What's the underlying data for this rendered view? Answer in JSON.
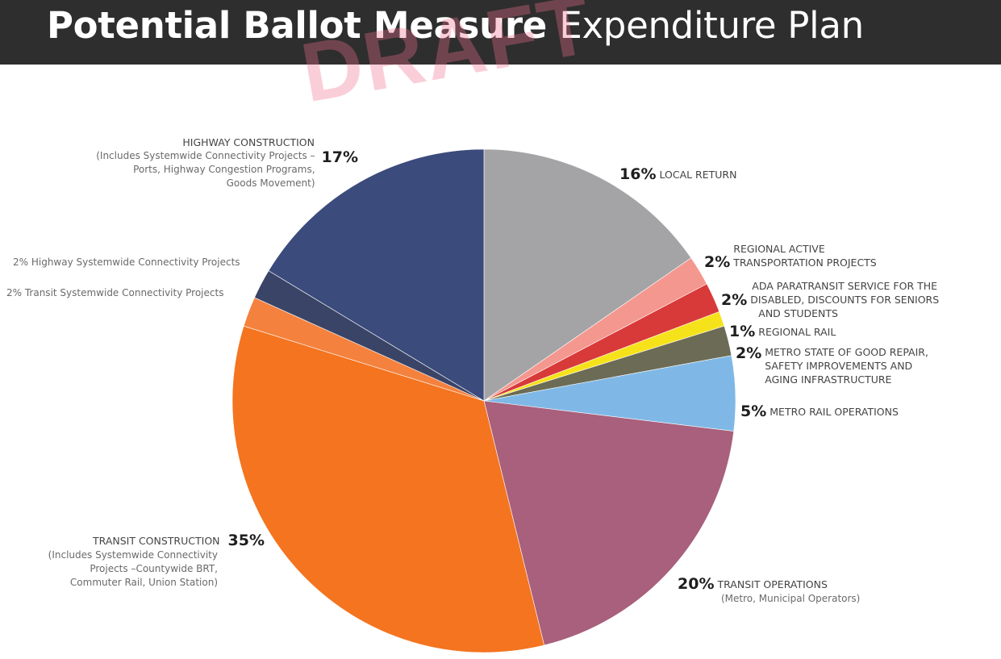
{
  "header": {
    "title_bold": "Potential Ballot Measure",
    "title_light": "Expenditure Plan"
  },
  "watermark": "DRAFT",
  "chart_data": {
    "type": "pie",
    "title": "Potential Ballot Measure Expenditure Plan",
    "slices": [
      {
        "pct_label": "16%",
        "value": 16,
        "label": "LOCAL RETURN",
        "color": "#a4a4a6"
      },
      {
        "pct_label": "2%",
        "value": 2,
        "label_lines": [
          "REGIONAL ACTIVE",
          "TRANSPORTATION PROJECTS"
        ],
        "color": "#f4978e"
      },
      {
        "pct_label": "2%",
        "value": 2,
        "label_lines": [
          "ADA PARATRANSIT SERVICE FOR THE",
          "DISABLED, DISCOUNTS FOR SENIORS",
          "AND STUDENTS"
        ],
        "color": "#d83a3a"
      },
      {
        "pct_label": "1%",
        "value": 1,
        "label": "REGIONAL RAIL",
        "color": "#f6e21a"
      },
      {
        "pct_label": "2%",
        "value": 2,
        "label_lines": [
          "METRO STATE OF GOOD REPAIR,",
          "SAFETY IMPROVEMENTS AND",
          "AGING INFRASTRUCTURE"
        ],
        "color": "#6c6b55"
      },
      {
        "pct_label": "5%",
        "value": 5,
        "label": "METRO RAIL OPERATIONS",
        "color": "#7fb8e6"
      },
      {
        "pct_label": "20%",
        "value": 20,
        "label": "TRANSIT OPERATIONS",
        "sub": "(Metro, Municipal Operators)",
        "color": "#a8607c"
      },
      {
        "pct_label": "35%",
        "value": 35,
        "label": "TRANSIT CONSTRUCTION",
        "sub_lines": [
          "(Includes Systemwide Connectivity",
          "Projects –Countywide BRT,",
          "Commuter Rail, Union Station)"
        ],
        "color": "#f47420"
      },
      {
        "pct_label": "2%",
        "value": 2,
        "label": "2% Transit Systemwide Connectivity Projects",
        "color": "#f4823e"
      },
      {
        "pct_label": "2%",
        "value": 2,
        "label": "2% Highway Systemwide Connectivity Projects",
        "color": "#3a4467"
      },
      {
        "pct_label": "17%",
        "value": 17,
        "label": "HIGHWAY CONSTRUCTION",
        "sub_lines": [
          "(Includes Systemwide Connectivity Projects –",
          "Ports, Highway Congestion Programs,",
          "Goods Movement)"
        ],
        "color": "#3b4b7c"
      }
    ]
  }
}
